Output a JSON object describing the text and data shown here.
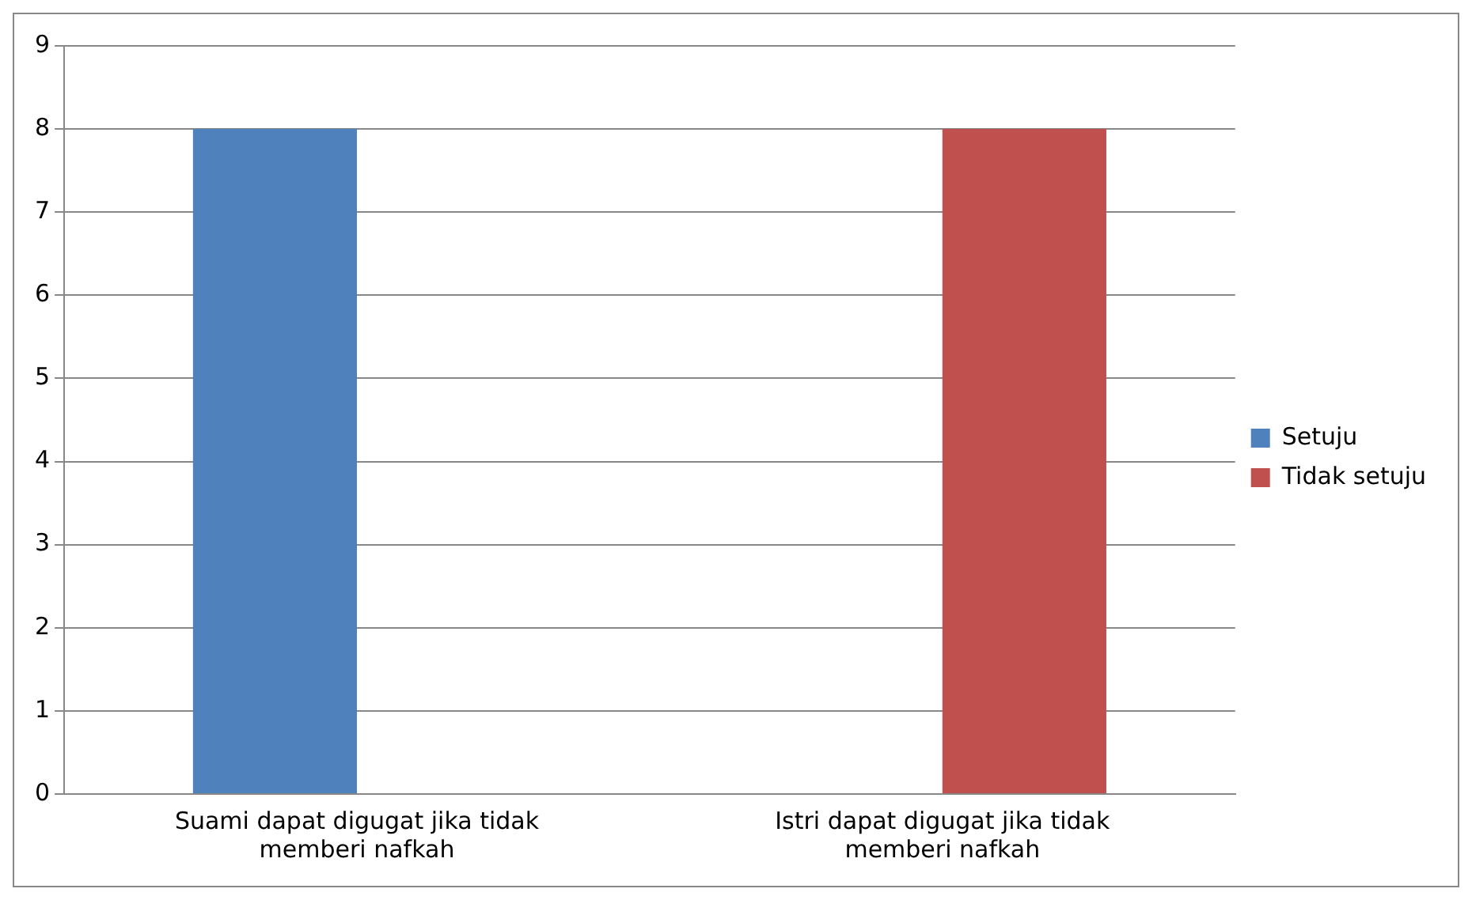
{
  "chart_data": {
    "type": "bar",
    "categories": [
      "Suami dapat digugat jika tidak memberi nafkah",
      "Istri dapat digugat jika tidak memberi nafkah"
    ],
    "series": [
      {
        "name": "Setuju",
        "color": "#4f81bd",
        "values": [
          8,
          0
        ]
      },
      {
        "name": "Tidak setuju",
        "color": "#c0504d",
        "values": [
          0,
          8
        ]
      }
    ],
    "ylim": [
      0,
      9
    ],
    "yticks": [
      0,
      1,
      2,
      3,
      4,
      5,
      6,
      7,
      8,
      9
    ],
    "grid": "y",
    "legend": "right"
  }
}
